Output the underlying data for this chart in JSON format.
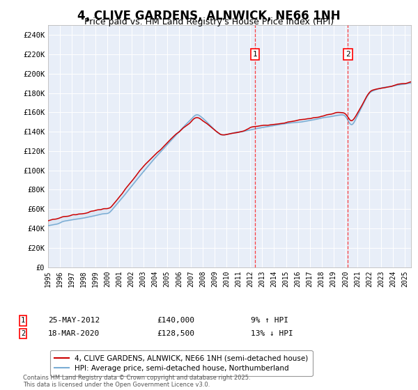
{
  "title": "4, CLIVE GARDENS, ALNWICK, NE66 1NH",
  "subtitle": "Price paid vs. HM Land Registry's House Price Index (HPI)",
  "hpi_color": "#7aadd4",
  "property_color": "#cc0000",
  "fill_color": "#c8d8ee",
  "plot_bg_color": "#e8eef8",
  "ylim": [
    0,
    250000
  ],
  "yticks": [
    0,
    20000,
    40000,
    60000,
    80000,
    100000,
    120000,
    140000,
    160000,
    180000,
    200000,
    220000,
    240000
  ],
  "sale1_date": "25-MAY-2012",
  "sale1_price": 140000,
  "sale1_year": 2012.39,
  "sale2_date": "18-MAR-2020",
  "sale2_price": 128500,
  "sale2_year": 2020.21,
  "legend_line1": "4, CLIVE GARDENS, ALNWICK, NE66 1NH (semi-detached house)",
  "legend_line2": "HPI: Average price, semi-detached house, Northumberland",
  "footer": "Contains HM Land Registry data © Crown copyright and database right 2025.\nThis data is licensed under the Open Government Licence v3.0.",
  "xmin": 1995,
  "xmax": 2025.5
}
